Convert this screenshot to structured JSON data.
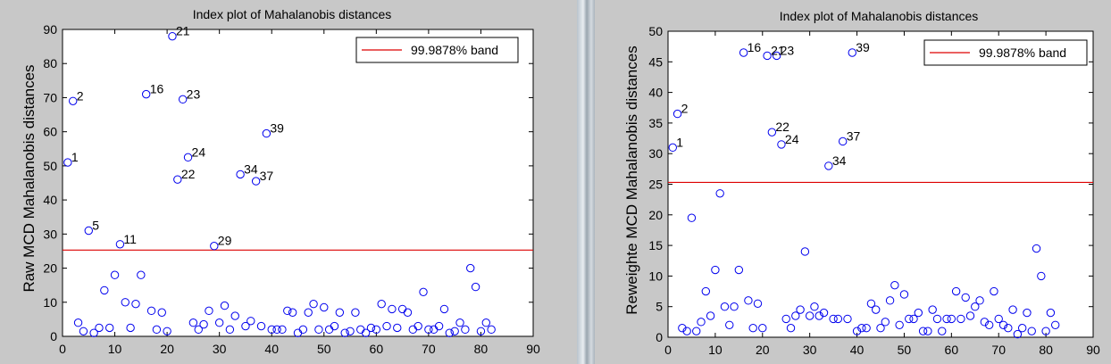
{
  "chart_data": [
    {
      "type": "scatter",
      "title": "Index plot of Mahalanobis distances",
      "xlabel": "",
      "ylabel": "Raw MCD Mahalanobis distances",
      "xlim": [
        0,
        90
      ],
      "ylim": [
        0,
        90
      ],
      "xticks": [
        "0",
        "10",
        "20",
        "30",
        "40",
        "50",
        "60",
        "70",
        "80",
        "90"
      ],
      "yticks": [
        "0",
        "10",
        "20",
        "30",
        "40",
        "50",
        "60",
        "70",
        "80",
        "90"
      ],
      "band": 25.3,
      "legend": "99.9878% band",
      "legend_position": "top-right",
      "line_color": "#dd0000",
      "marker_color": "#0000ee",
      "x": [
        1,
        2,
        3,
        4,
        5,
        6,
        7,
        8,
        9,
        10,
        11,
        12,
        13,
        14,
        15,
        16,
        17,
        18,
        19,
        20,
        21,
        22,
        23,
        24,
        25,
        26,
        27,
        28,
        29,
        30,
        31,
        32,
        33,
        34,
        35,
        36,
        37,
        38,
        39,
        40,
        41,
        42,
        43,
        44,
        45,
        46,
        47,
        48,
        49,
        50,
        51,
        52,
        53,
        54,
        55,
        56,
        57,
        58,
        59,
        60,
        61,
        62,
        63,
        64,
        65,
        66,
        67,
        68,
        69,
        70,
        71,
        72,
        73,
        74,
        75,
        76,
        77,
        78,
        79,
        80,
        81,
        82
      ],
      "y": [
        51,
        69,
        4,
        1.5,
        31,
        1,
        2.5,
        13.5,
        2.5,
        18,
        27,
        10,
        2.5,
        9.5,
        18,
        71,
        7.5,
        2,
        7,
        1.5,
        88,
        46,
        69.5,
        52.5,
        4,
        2,
        3.5,
        7.5,
        26.5,
        4,
        9,
        2,
        6,
        47.5,
        3,
        4.5,
        45.5,
        3,
        59.5,
        2,
        2,
        2,
        7.5,
        7,
        1,
        2,
        7,
        9.5,
        2,
        8.5,
        2,
        3,
        7,
        1,
        1.5,
        7,
        2,
        1,
        2.5,
        2,
        9.5,
        3,
        8,
        2.5,
        8,
        7,
        2,
        3,
        13,
        2,
        2,
        3,
        8,
        1,
        1.5,
        4,
        2,
        20,
        14.5,
        1.5,
        4,
        2
      ],
      "annotations": [
        {
          "label": "1",
          "x": 1,
          "y": 51
        },
        {
          "label": "2",
          "x": 2,
          "y": 69
        },
        {
          "label": "5",
          "x": 5,
          "y": 31
        },
        {
          "label": "11",
          "x": 11,
          "y": 27
        },
        {
          "label": "16",
          "x": 16,
          "y": 71
        },
        {
          "label": "21",
          "x": 21,
          "y": 88
        },
        {
          "label": "22",
          "x": 22,
          "y": 46
        },
        {
          "label": "23",
          "x": 23,
          "y": 69.5
        },
        {
          "label": "24",
          "x": 24,
          "y": 52.5
        },
        {
          "label": "29",
          "x": 29,
          "y": 26.5
        },
        {
          "label": "34",
          "x": 34,
          "y": 47.5
        },
        {
          "label": "37",
          "x": 37,
          "y": 45.5
        },
        {
          "label": "39",
          "x": 39,
          "y": 59.5
        }
      ]
    },
    {
      "type": "scatter",
      "title": "Index plot of Mahalanobis distances",
      "xlabel": "",
      "ylabel": "Reweighte MCD Mahalanobis distances",
      "xlim": [
        0,
        90
      ],
      "ylim": [
        0,
        50
      ],
      "xticks": [
        "0",
        "10",
        "20",
        "30",
        "40",
        "50",
        "60",
        "70",
        "80",
        "90"
      ],
      "yticks": [
        "0",
        "5",
        "10",
        "15",
        "20",
        "25",
        "30",
        "35",
        "40",
        "45",
        "50"
      ],
      "band": 25.3,
      "legend": "99.9878% band",
      "legend_position": "top-right",
      "line_color": "#dd0000",
      "marker_color": "#0000ee",
      "x": [
        1,
        2,
        3,
        4,
        5,
        6,
        7,
        8,
        9,
        10,
        11,
        12,
        13,
        14,
        15,
        16,
        17,
        18,
        19,
        20,
        21,
        22,
        23,
        24,
        25,
        26,
        27,
        28,
        29,
        30,
        31,
        32,
        33,
        34,
        35,
        36,
        37,
        38,
        39,
        40,
        41,
        42,
        43,
        44,
        45,
        46,
        47,
        48,
        49,
        50,
        51,
        52,
        53,
        54,
        55,
        56,
        57,
        58,
        59,
        60,
        61,
        62,
        63,
        64,
        65,
        66,
        67,
        68,
        69,
        70,
        71,
        72,
        73,
        74,
        75,
        76,
        77,
        78,
        79,
        80,
        81,
        82
      ],
      "y": [
        31,
        36.5,
        1.5,
        1,
        19.5,
        1,
        2.5,
        7.5,
        3.5,
        11,
        23.5,
        5,
        2,
        5,
        11,
        46.5,
        6,
        1.5,
        5.5,
        1.5,
        46,
        33.5,
        46,
        31.5,
        3,
        1.5,
        3.5,
        4.5,
        14,
        3.5,
        5,
        3.5,
        4,
        28,
        3,
        3,
        32,
        3,
        46.5,
        1,
        1.5,
        1.5,
        5.5,
        4.5,
        1.5,
        2.5,
        6,
        8.5,
        2,
        7,
        3,
        3,
        4,
        1,
        1,
        4.5,
        3,
        1,
        3,
        3,
        7.5,
        3,
        6.5,
        3.5,
        5,
        6,
        2.5,
        2,
        7.5,
        3,
        2,
        1.5,
        4.5,
        0.5,
        1.5,
        4,
        1,
        14.5,
        10,
        1,
        4,
        2
      ],
      "annotations": [
        {
          "label": "1",
          "x": 1,
          "y": 31
        },
        {
          "label": "2",
          "x": 2,
          "y": 36.5
        },
        {
          "label": "16",
          "x": 16,
          "y": 46.5
        },
        {
          "label": "21",
          "x": 21,
          "y": 46
        },
        {
          "label": "22",
          "x": 22,
          "y": 33.5
        },
        {
          "label": "23",
          "x": 23,
          "y": 46
        },
        {
          "label": "24",
          "x": 24,
          "y": 31.5
        },
        {
          "label": "34",
          "x": 34,
          "y": 28
        },
        {
          "label": "37",
          "x": 37,
          "y": 32
        },
        {
          "label": "39",
          "x": 39,
          "y": 46.5
        }
      ]
    }
  ]
}
